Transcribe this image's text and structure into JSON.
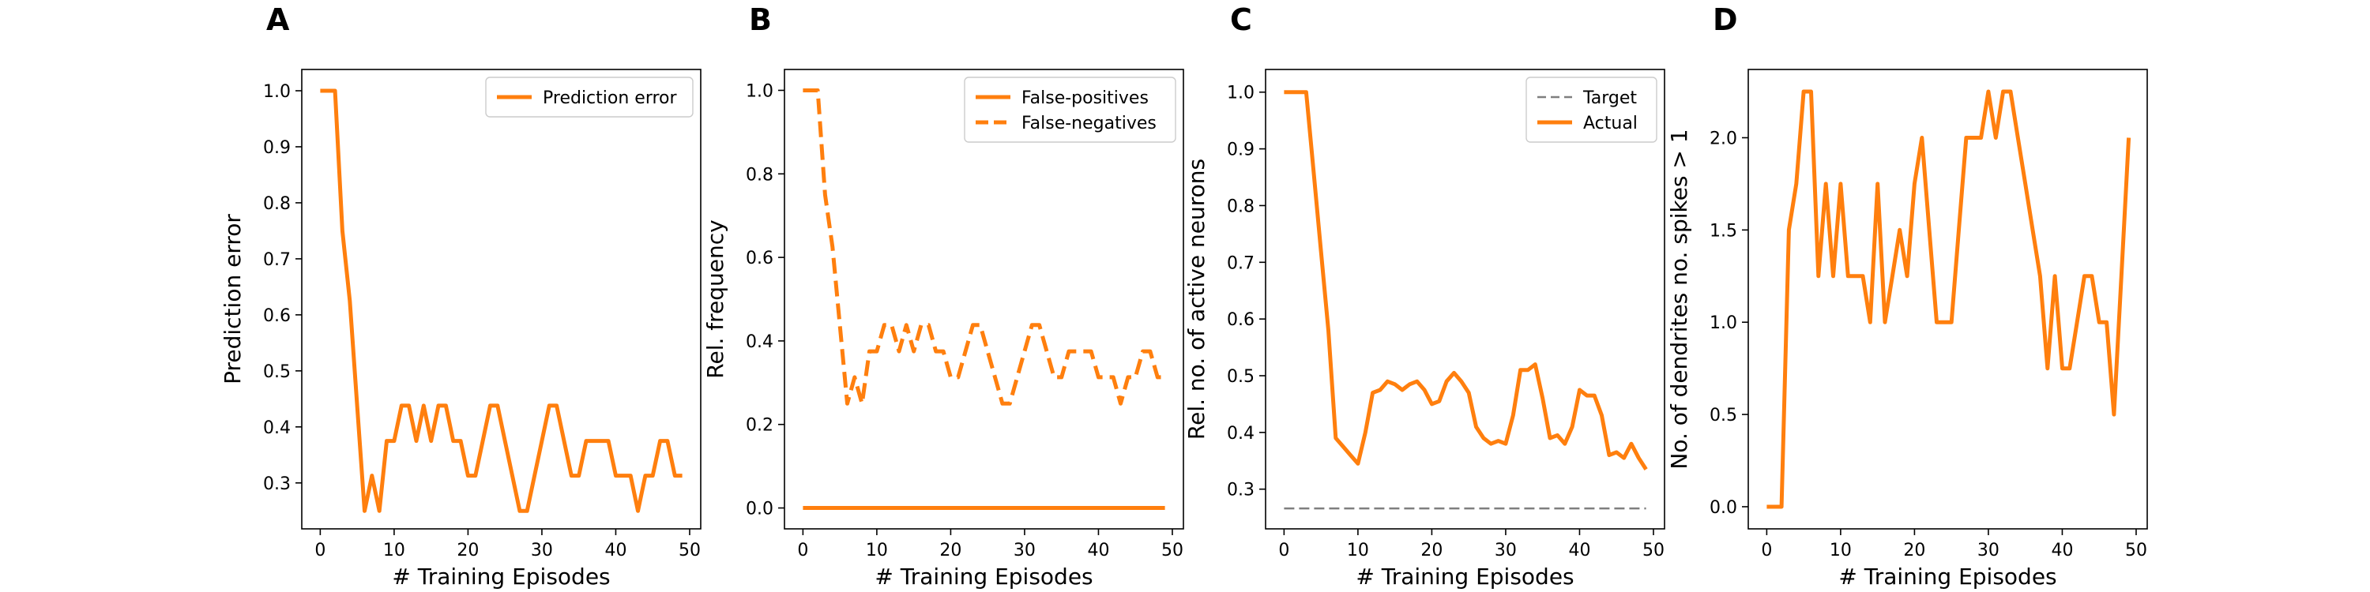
{
  "colors": {
    "accent": "#ff7f0e",
    "target": "#7f7f7f",
    "axes": "#000000"
  },
  "chart_data": [
    {
      "type": "line",
      "panel": "A",
      "xlabel": "# Training Episodes",
      "ylabel": "Prediction error",
      "xlim": [
        -2.5,
        51.5
      ],
      "ylim": [
        0.218,
        1.038
      ],
      "xticks": [
        0,
        10,
        20,
        30,
        40,
        50
      ],
      "yticks": [
        0.3,
        0.4,
        0.5,
        0.6,
        0.7,
        0.8,
        0.9,
        1.0
      ],
      "ytick_labels": [
        "0.3",
        "0.4",
        "0.5",
        "0.6",
        "0.7",
        "0.8",
        "0.9",
        "1.0"
      ],
      "legend_position": "top-right",
      "series": [
        {
          "name": "Prediction error",
          "style": "solid",
          "x": [
            0,
            1,
            2,
            3,
            4,
            5,
            6,
            7,
            8,
            9,
            10,
            11,
            12,
            13,
            14,
            15,
            16,
            17,
            18,
            19,
            20,
            21,
            22,
            23,
            24,
            25,
            26,
            27,
            28,
            29,
            30,
            31,
            32,
            33,
            34,
            35,
            36,
            37,
            38,
            39,
            40,
            41,
            42,
            43,
            44,
            45,
            46,
            47,
            48,
            49
          ],
          "y": [
            1.0,
            1.0,
            1.0,
            0.75,
            0.625,
            0.438,
            0.25,
            0.313,
            0.25,
            0.375,
            0.375,
            0.438,
            0.438,
            0.375,
            0.438,
            0.375,
            0.438,
            0.438,
            0.375,
            0.375,
            0.313,
            0.313,
            0.375,
            0.438,
            0.438,
            0.375,
            0.313,
            0.25,
            0.25,
            0.313,
            0.375,
            0.438,
            0.438,
            0.375,
            0.313,
            0.313,
            0.375,
            0.375,
            0.375,
            0.375,
            0.313,
            0.313,
            0.313,
            0.25,
            0.313,
            0.313,
            0.375,
            0.375,
            0.313,
            0.313
          ]
        }
      ]
    },
    {
      "type": "line",
      "panel": "B",
      "xlabel": "# Training Episodes",
      "ylabel": "Rel. frequency",
      "xlim": [
        -2.5,
        51.5
      ],
      "ylim": [
        -0.05,
        1.05
      ],
      "xticks": [
        0,
        10,
        20,
        30,
        40,
        50
      ],
      "yticks": [
        0.0,
        0.2,
        0.4,
        0.6,
        0.8,
        1.0
      ],
      "ytick_labels": [
        "0.0",
        "0.2",
        "0.4",
        "0.6",
        "0.8",
        "1.0"
      ],
      "legend_position": "top-right",
      "series": [
        {
          "name": "False-positives",
          "style": "solid",
          "x": [
            0,
            49
          ],
          "y": [
            0.0,
            0.0
          ]
        },
        {
          "name": "False-negatives",
          "style": "dashed",
          "x": [
            0,
            1,
            2,
            3,
            4,
            5,
            6,
            7,
            8,
            9,
            10,
            11,
            12,
            13,
            14,
            15,
            16,
            17,
            18,
            19,
            20,
            21,
            22,
            23,
            24,
            25,
            26,
            27,
            28,
            29,
            30,
            31,
            32,
            33,
            34,
            35,
            36,
            37,
            38,
            39,
            40,
            41,
            42,
            43,
            44,
            45,
            46,
            47,
            48,
            49
          ],
          "y": [
            1.0,
            1.0,
            1.0,
            0.75,
            0.625,
            0.438,
            0.25,
            0.313,
            0.25,
            0.375,
            0.375,
            0.438,
            0.438,
            0.375,
            0.438,
            0.375,
            0.438,
            0.438,
            0.375,
            0.375,
            0.313,
            0.313,
            0.375,
            0.438,
            0.438,
            0.375,
            0.313,
            0.25,
            0.25,
            0.313,
            0.375,
            0.438,
            0.438,
            0.375,
            0.313,
            0.313,
            0.375,
            0.375,
            0.375,
            0.375,
            0.313,
            0.313,
            0.313,
            0.25,
            0.313,
            0.313,
            0.375,
            0.375,
            0.313,
            0.313
          ]
        }
      ]
    },
    {
      "type": "line",
      "panel": "C",
      "xlabel": "# Training Episodes",
      "ylabel": "Rel. no. of active neurons",
      "xlim": [
        -2.5,
        51.5
      ],
      "ylim": [
        0.23,
        1.04
      ],
      "xticks": [
        0,
        10,
        20,
        30,
        40,
        50
      ],
      "yticks": [
        0.3,
        0.4,
        0.5,
        0.6,
        0.7,
        0.8,
        0.9,
        1.0
      ],
      "ytick_labels": [
        "0.3",
        "0.4",
        "0.5",
        "0.6",
        "0.7",
        "0.8",
        "0.9",
        "1.0"
      ],
      "legend_position": "top-right",
      "series": [
        {
          "name": "Target",
          "style": "dashed-thin",
          "color": "target",
          "x": [
            0,
            49
          ],
          "y": [
            0.266,
            0.266
          ]
        },
        {
          "name": "Actual",
          "style": "solid",
          "x": [
            0,
            1,
            2,
            3,
            4,
            5,
            6,
            7,
            8,
            9,
            10,
            11,
            12,
            13,
            14,
            15,
            16,
            17,
            18,
            19,
            20,
            21,
            22,
            23,
            24,
            25,
            26,
            27,
            28,
            29,
            30,
            31,
            32,
            33,
            34,
            35,
            36,
            37,
            38,
            39,
            40,
            41,
            42,
            43,
            44,
            45,
            46,
            47,
            48,
            49
          ],
          "y": [
            1.0,
            1.0,
            1.0,
            1.0,
            0.86,
            0.72,
            0.58,
            0.39,
            0.375,
            0.36,
            0.345,
            0.4,
            0.47,
            0.475,
            0.49,
            0.485,
            0.475,
            0.485,
            0.49,
            0.475,
            0.45,
            0.455,
            0.49,
            0.505,
            0.49,
            0.47,
            0.41,
            0.39,
            0.38,
            0.385,
            0.38,
            0.43,
            0.51,
            0.51,
            0.52,
            0.46,
            0.39,
            0.395,
            0.38,
            0.41,
            0.475,
            0.465,
            0.465,
            0.43,
            0.36,
            0.365,
            0.355,
            0.38,
            0.355,
            0.335
          ]
        }
      ]
    },
    {
      "type": "line",
      "panel": "D",
      "xlabel": "# Training Episodes",
      "ylabel": "No. of dendrites no. spikes > 1",
      "xlim": [
        -2.5,
        51.5
      ],
      "ylim": [
        -0.12,
        2.37
      ],
      "xticks": [
        0,
        10,
        20,
        30,
        40,
        50
      ],
      "yticks": [
        0.0,
        0.5,
        1.0,
        1.5,
        2.0
      ],
      "ytick_labels": [
        "0.0",
        "0.5",
        "1.0",
        "1.5",
        "2.0"
      ],
      "legend_position": "none",
      "series": [
        {
          "style": "solid",
          "x": [
            0,
            1,
            2,
            3,
            4,
            5,
            6,
            7,
            8,
            9,
            10,
            11,
            12,
            13,
            14,
            15,
            16,
            17,
            18,
            19,
            20,
            21,
            22,
            23,
            24,
            25,
            26,
            27,
            28,
            29,
            30,
            31,
            32,
            33,
            34,
            35,
            36,
            37,
            38,
            39,
            40,
            41,
            42,
            43,
            44,
            45,
            46,
            47,
            48,
            49
          ],
          "y": [
            0,
            0,
            0,
            1.5,
            1.75,
            2.25,
            2.25,
            1.25,
            1.75,
            1.25,
            1.75,
            1.25,
            1.25,
            1.25,
            1.0,
            1.75,
            1.0,
            1.25,
            1.5,
            1.25,
            1.75,
            2.0,
            1.5,
            1.0,
            1.0,
            1.0,
            1.5,
            2.0,
            2.0,
            2.0,
            2.25,
            2.0,
            2.25,
            2.25,
            2.0,
            1.75,
            1.5,
            1.25,
            0.75,
            1.25,
            0.75,
            0.75,
            1.0,
            1.25,
            1.25,
            1.0,
            1.0,
            0.5,
            1.25,
            2.0
          ]
        }
      ]
    }
  ]
}
